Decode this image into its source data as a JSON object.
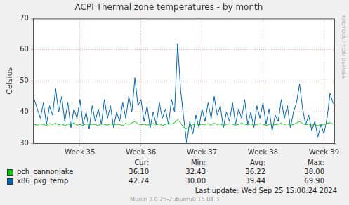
{
  "chart_data": {
    "type": "line",
    "title": "ACPI Thermal zone temperatures - by month",
    "y_label": "Celsius",
    "x": [
      34.25,
      34.3,
      34.35,
      34.4,
      34.45,
      34.5,
      34.55,
      34.6,
      34.65,
      34.7,
      34.75,
      34.8,
      34.85,
      34.9,
      34.95,
      35.0,
      35.05,
      35.1,
      35.15,
      35.2,
      35.25,
      35.3,
      35.35,
      35.4,
      35.45,
      35.5,
      35.55,
      35.6,
      35.65,
      35.7,
      35.75,
      35.8,
      35.85,
      35.9,
      35.95,
      36.0,
      36.05,
      36.1,
      36.15,
      36.2,
      36.25,
      36.3,
      36.35,
      36.4,
      36.45,
      36.5,
      36.55,
      36.6,
      36.65,
      36.7,
      36.75,
      36.8,
      36.85,
      36.9,
      36.95,
      37.0,
      37.05,
      37.1,
      37.15,
      37.2,
      37.25,
      37.3,
      37.35,
      37.4,
      37.45,
      37.5,
      37.55,
      37.6,
      37.65,
      37.7,
      37.75,
      37.8,
      37.85,
      37.9,
      37.95,
      38.0,
      38.05,
      38.1,
      38.15,
      38.2,
      38.25,
      38.3,
      38.35,
      38.4,
      38.45,
      38.5,
      38.55,
      38.6,
      38.65,
      38.7,
      38.75,
      38.8,
      38.85,
      38.9,
      38.95,
      39.0,
      39.05,
      39.1,
      39.15
    ],
    "xlim": [
      34.24,
      39.18
    ],
    "xticks": [
      {
        "value": 35,
        "label": "Week 35"
      },
      {
        "value": 36,
        "label": "Week 36"
      },
      {
        "value": 37,
        "label": "Week 37"
      },
      {
        "value": 38,
        "label": "Week 38"
      },
      {
        "value": 39,
        "label": "Week 39"
      }
    ],
    "ylim": [
      30,
      70
    ],
    "yticks": [
      30,
      40,
      50,
      60,
      70
    ],
    "grid": true,
    "legend": "bottom",
    "stats_columns": [
      "Cur:",
      "Min:",
      "Avg:",
      "Max:"
    ],
    "series": [
      {
        "name": "pch_cannonlake",
        "color": "#00cc00",
        "values": [
          36,
          35.8,
          36.2,
          36,
          35.7,
          36.3,
          36,
          36.4,
          35.9,
          36.2,
          35.6,
          36.1,
          36,
          36.5,
          35.8,
          36,
          35.7,
          36.2,
          35.9,
          36.1,
          36,
          35.6,
          36.3,
          36,
          35.8,
          36.2,
          35.9,
          36.1,
          36,
          35.7,
          36.4,
          36,
          36.5,
          37,
          36.2,
          35.9,
          36.1,
          35.8,
          36,
          36.3,
          35.9,
          36.2,
          35.7,
          36,
          36.4,
          36.1,
          36.6,
          37.5,
          36.5,
          35,
          34.5,
          35.5,
          36,
          36.2,
          35.9,
          36.1,
          36,
          36.3,
          35.8,
          36.4,
          36,
          36.2,
          35.7,
          36,
          36.3,
          36.1,
          35.8,
          36,
          36.4,
          36.1,
          35.9,
          36.2,
          35.8,
          36,
          36.3,
          36.1,
          35.7,
          36,
          36.2,
          35.9,
          36.1,
          36.4,
          36,
          36.2,
          35.8,
          36,
          36.5,
          37,
          36.3,
          35.9,
          36.1,
          35.8,
          36,
          35.6,
          36.1,
          36,
          36.3,
          36.6,
          36.1
        ],
        "stats": [
          36.1,
          32.43,
          36.22,
          38
        ],
        "stats_labels": [
          "36.10",
          "32.43",
          "36.22",
          "38.00"
        ]
      },
      {
        "name": "x86_pkg_temp",
        "color": "#0066b3",
        "values": [
          44,
          41,
          38,
          43,
          36,
          42,
          39,
          47.5,
          40,
          45,
          37,
          43,
          35,
          41,
          38,
          44,
          36,
          40,
          34.5,
          42,
          37,
          41,
          36,
          44,
          38,
          42,
          35,
          40,
          37,
          43,
          38,
          45,
          40,
          51,
          42,
          44,
          37,
          42,
          35,
          40,
          36,
          43,
          38,
          41,
          36,
          44,
          40,
          62,
          47,
          38,
          30,
          37,
          33,
          39,
          35,
          41,
          37,
          43,
          38,
          45,
          39,
          42,
          35,
          40,
          37,
          43,
          36,
          41,
          38,
          44,
          36,
          40,
          35,
          42,
          38,
          43,
          36,
          41,
          34,
          39,
          37,
          44,
          38,
          42,
          35,
          40,
          43,
          49,
          41,
          36,
          39,
          34,
          37,
          32,
          36,
          33,
          38,
          46,
          42.74
        ],
        "stats": [
          42.74,
          30,
          39.44,
          69.9
        ],
        "stats_labels": [
          "42.74",
          "30.00",
          "39.44",
          "69.90"
        ]
      }
    ],
    "footer": "Last update: Wed Sep 25 15:00:24 2024",
    "credit": "Munin 2.0.25-2ubuntu0.16.04.3",
    "watermark": "RRDTOOL / TOBI OETIKER"
  }
}
